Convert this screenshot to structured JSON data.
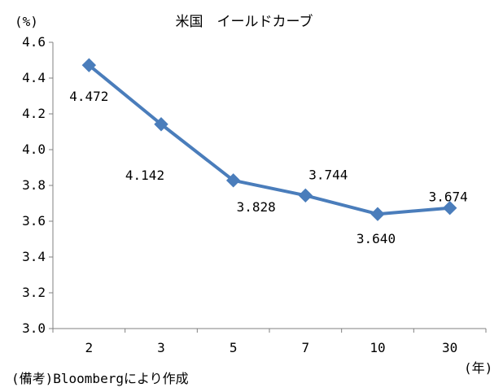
{
  "chart_data": {
    "type": "line",
    "title": "米国　イールドカーブ",
    "ylabel": "(%)",
    "xlabel": "(年)",
    "categories": [
      "2",
      "3",
      "5",
      "7",
      "10",
      "30"
    ],
    "series": [
      {
        "values": [
          4.472,
          4.142,
          3.828,
          3.744,
          3.64,
          3.674
        ],
        "color": "#4a7dbb"
      }
    ],
    "data_labels": [
      "4.472",
      "4.142",
      "3.828",
      "3.744",
      "3.640",
      "3.674"
    ],
    "yticks": [
      "3.0",
      "3.2",
      "3.4",
      "3.6",
      "3.8",
      "4.0",
      "4.2",
      "4.4",
      "4.6"
    ],
    "ylim": [
      3.0,
      4.6
    ],
    "marker": "diamond",
    "grid": false,
    "legend": "none"
  },
  "footnote": "(備考)Bloombergにより作成"
}
